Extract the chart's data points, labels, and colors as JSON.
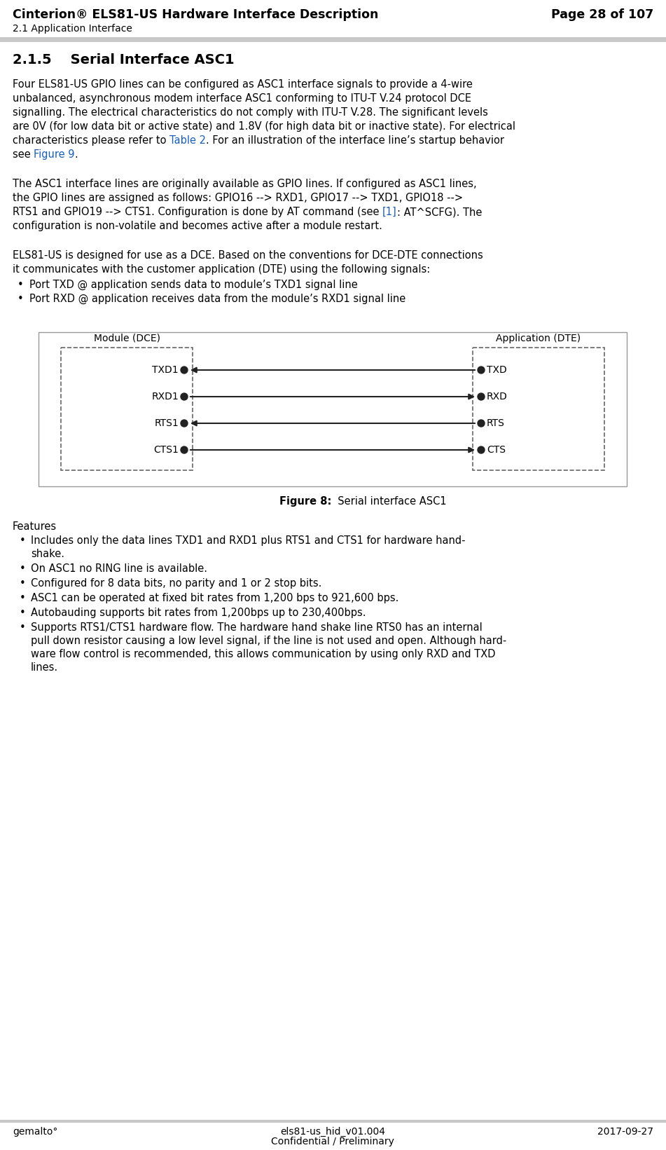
{
  "header_title": "Cinterion® ELS81-US Hardware Interface Description",
  "header_right": "Page 28 of 107",
  "header_sub": "2.1 Application Interface",
  "section_title": "2.1.5    Serial Interface ASC1",
  "para1_lines": [
    "Four ELS81-US GPIO lines can be configured as ASC1 interface signals to provide a 4-wire",
    "unbalanced, asynchronous modem interface ASC1 conforming to ITU-T V.24 protocol DCE",
    "signalling. The electrical characteristics do not comply with ITU-T V.28. The significant levels",
    "are 0V (for low data bit or active state) and 1.8V (for high data bit or inactive state). For electrical",
    "characteristics please refer to ¶Table 2¶. For an illustration of the interface line’s startup behavior",
    "see ¶Figure 9¶."
  ],
  "para2_lines": [
    "The ASC1 interface lines are originally available as GPIO lines. If configured as ASC1 lines,",
    "the GPIO lines are assigned as follows: GPIO16 --> RXD1, GPIO17 --> TXD1, GPIO18 -->",
    "RTS1 and GPIO19 --> CTS1. Configuration is done by AT command (see ¶[1]¶: AT^SCFG). The",
    "configuration is non-volatile and becomes active after a module restart."
  ],
  "para3_lines": [
    "ELS81-US is designed for use as a DCE. Based on the conventions for DCE-DTE connections",
    "it communicates with the customer application (DTE) using the following signals:"
  ],
  "bullet1": "Port TXD @ application sends data to module’s TXD1 signal line",
  "bullet2": "Port RXD @ application receives data from the module’s RXD1 signal line",
  "figure_caption_bold": "Figure 8:",
  "figure_caption_rest": "  Serial interface ASC1",
  "features_title": "Features",
  "features": [
    "Includes only the data lines TXD1 and RXD1 plus RTS1 and CTS1 for hardware hand-\nshake.",
    "On ASC1 no RING line is available.",
    "Configured for 8 data bits, no parity and 1 or 2 stop bits.",
    "ASC1 can be operated at fixed bit rates from 1,200 bps to 921,600 bps.",
    "Autobauding supports bit rates from 1,200bps up to 230,400bps.",
    "Supports RTS1/CTS1 hardware flow. The hardware hand shake line RTS0 has an internal\npull down resistor causing a low level signal, if the line is not used and open. Although hard-\nware flow control is recommended, this allows communication by using only RXD and TXD\nlines."
  ],
  "footer_left": "gemalto°",
  "footer_center1": "els81-us_hid_v01.004",
  "footer_center2": "Confidential / Preliminary",
  "footer_right": "2017-09-27",
  "bg_color": "#ffffff",
  "header_line_color": "#c8c8c8",
  "text_color": "#000000",
  "link_color": "#1a5fb4",
  "diagram_dash_color": "#666666",
  "diagram_outer_color": "#999999",
  "signal_color": "#222222"
}
